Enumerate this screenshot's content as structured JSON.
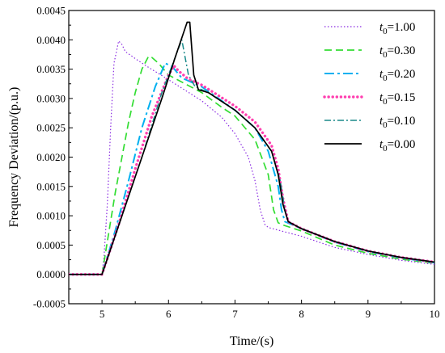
{
  "chart_data": {
    "type": "line",
    "xlabel": "Time/(s)",
    "ylabel": "Frequency Deviation/(p.u.)",
    "xlim": [
      4.5,
      10
    ],
    "ylim": [
      -0.0005,
      0.0045
    ],
    "x_ticks": [
      5,
      6,
      7,
      8,
      9,
      10
    ],
    "x_tick_labels": [
      "5",
      "6",
      "7",
      "8",
      "9",
      "10"
    ],
    "y_ticks": [
      -0.0005,
      0,
      0.0005,
      0.001,
      0.0015,
      0.002,
      0.0025,
      0.003,
      0.0035,
      0.004,
      0.0045
    ],
    "y_tick_labels": [
      "-0.0005",
      "0.0000",
      "0.0005",
      "0.0010",
      "0.0015",
      "0.0020",
      "0.0025",
      "0.0030",
      "0.0035",
      "0.0040",
      "0.0045"
    ],
    "grid": false,
    "legend_position": "top-right",
    "series": [
      {
        "name": "t0=1.00",
        "name_base": "t",
        "name_sub": "0",
        "name_rest": "=1.00",
        "color": "#8a2be2",
        "dash": "1.5,2.5",
        "width": 1.2,
        "points": [
          [
            4.5,
            0
          ],
          [
            5.0,
            0
          ],
          [
            5.03,
            0.0003
          ],
          [
            5.08,
            0.0012
          ],
          [
            5.13,
            0.0025
          ],
          [
            5.18,
            0.0036
          ],
          [
            5.25,
            0.00398
          ],
          [
            5.3,
            0.00392
          ],
          [
            5.35,
            0.0038
          ],
          [
            5.5,
            0.00368
          ],
          [
            5.7,
            0.00353
          ],
          [
            6.0,
            0.00332
          ],
          [
            6.5,
            0.00296
          ],
          [
            6.8,
            0.00268
          ],
          [
            7.0,
            0.0024
          ],
          [
            7.2,
            0.002
          ],
          [
            7.3,
            0.0016
          ],
          [
            7.38,
            0.0011
          ],
          [
            7.45,
            0.00085
          ],
          [
            7.5,
            0.0008
          ],
          [
            8.0,
            0.00065
          ],
          [
            8.5,
            0.00046
          ],
          [
            9.0,
            0.00034
          ],
          [
            9.5,
            0.00024
          ],
          [
            10.0,
            0.00017
          ]
        ]
      },
      {
        "name": "t0=0.30",
        "name_base": "t",
        "name_sub": "0",
        "name_rest": "=0.30",
        "color": "#33dd33",
        "dash": "9,5",
        "width": 1.7,
        "points": [
          [
            4.5,
            0
          ],
          [
            5.0,
            0
          ],
          [
            5.1,
            0.0007
          ],
          [
            5.2,
            0.0014
          ],
          [
            5.3,
            0.002
          ],
          [
            5.4,
            0.0026
          ],
          [
            5.5,
            0.0031
          ],
          [
            5.6,
            0.0035
          ],
          [
            5.7,
            0.00372
          ],
          [
            5.75,
            0.0037
          ],
          [
            5.85,
            0.0036
          ],
          [
            6.0,
            0.0034
          ],
          [
            6.5,
            0.0031
          ],
          [
            6.8,
            0.00285
          ],
          [
            7.0,
            0.0027
          ],
          [
            7.3,
            0.0023
          ],
          [
            7.5,
            0.0017
          ],
          [
            7.58,
            0.0011
          ],
          [
            7.65,
            0.00088
          ],
          [
            7.7,
            0.00085
          ],
          [
            8.0,
            0.00074
          ],
          [
            8.5,
            0.0005
          ],
          [
            9.0,
            0.00036
          ],
          [
            9.5,
            0.00026
          ],
          [
            10.0,
            0.00019
          ]
        ]
      },
      {
        "name": "t0=0.20",
        "name_base": "t",
        "name_sub": "0",
        "name_rest": "=0.20",
        "color": "#00b0f0",
        "dash": "12,4,3,4",
        "width": 2.0,
        "points": [
          [
            4.5,
            0
          ],
          [
            5.0,
            0
          ],
          [
            5.2,
            0.00075
          ],
          [
            5.4,
            0.0016
          ],
          [
            5.6,
            0.0025
          ],
          [
            5.8,
            0.0032
          ],
          [
            5.95,
            0.0036
          ],
          [
            6.05,
            0.00355
          ],
          [
            6.2,
            0.00335
          ],
          [
            6.5,
            0.0032
          ],
          [
            7.0,
            0.0028
          ],
          [
            7.3,
            0.0025
          ],
          [
            7.5,
            0.0021
          ],
          [
            7.65,
            0.0015
          ],
          [
            7.7,
            0.0011
          ],
          [
            7.75,
            0.0009
          ],
          [
            8.0,
            0.00078
          ],
          [
            8.5,
            0.00055
          ],
          [
            9.0,
            0.00039
          ],
          [
            9.5,
            0.00028
          ],
          [
            10.0,
            0.0002
          ]
        ]
      },
      {
        "name": "t0=0.15",
        "name_base": "t",
        "name_sub": "0",
        "name_rest": "=0.15",
        "color": "#ff40b0",
        "dash": "0.1,5",
        "width": 3.4,
        "points": [
          [
            4.5,
            0
          ],
          [
            5.0,
            0
          ],
          [
            5.25,
            0.00085
          ],
          [
            5.5,
            0.0018
          ],
          [
            5.75,
            0.0027
          ],
          [
            6.0,
            0.0034
          ],
          [
            6.08,
            0.00356
          ],
          [
            6.15,
            0.00347
          ],
          [
            6.3,
            0.00333
          ],
          [
            6.5,
            0.00323
          ],
          [
            7.0,
            0.00287
          ],
          [
            7.3,
            0.0026
          ],
          [
            7.55,
            0.0022
          ],
          [
            7.65,
            0.0018
          ],
          [
            7.72,
            0.0013
          ],
          [
            7.8,
            0.0009
          ],
          [
            8.0,
            0.00078
          ],
          [
            8.5,
            0.00056
          ],
          [
            9.0,
            0.0004
          ],
          [
            9.5,
            0.00029
          ],
          [
            10.0,
            0.00021
          ]
        ]
      },
      {
        "name": "t0=0.10",
        "name_base": "t",
        "name_sub": "0",
        "name_rest": "=0.10",
        "color": "#1a8a8a",
        "dash": "8,3,2,3",
        "width": 1.5,
        "points": [
          [
            4.5,
            0
          ],
          [
            5.0,
            0
          ],
          [
            5.3,
            0.001
          ],
          [
            5.6,
            0.002
          ],
          [
            5.9,
            0.0031
          ],
          [
            6.1,
            0.0037
          ],
          [
            6.2,
            0.004
          ],
          [
            6.25,
            0.0037
          ],
          [
            6.3,
            0.0034
          ],
          [
            6.4,
            0.0032
          ],
          [
            6.6,
            0.0031
          ],
          [
            7.0,
            0.0028
          ],
          [
            7.3,
            0.0025
          ],
          [
            7.55,
            0.0021
          ],
          [
            7.68,
            0.0016
          ],
          [
            7.75,
            0.0011
          ],
          [
            7.8,
            0.0009
          ],
          [
            8.0,
            0.00078
          ],
          [
            8.5,
            0.00056
          ],
          [
            9.0,
            0.0004
          ],
          [
            9.5,
            0.00029
          ],
          [
            10.0,
            0.00021
          ]
        ]
      },
      {
        "name": "t0=0.00",
        "name_base": "t",
        "name_sub": "0",
        "name_rest": "=0.00",
        "color": "#000000",
        "dash": "",
        "width": 1.7,
        "points": [
          [
            4.5,
            0
          ],
          [
            5.0,
            0
          ],
          [
            5.3,
            0.001
          ],
          [
            5.6,
            0.002
          ],
          [
            5.9,
            0.003
          ],
          [
            6.1,
            0.0037
          ],
          [
            6.28,
            0.0043
          ],
          [
            6.32,
            0.0043
          ],
          [
            6.38,
            0.0034
          ],
          [
            6.45,
            0.00315
          ],
          [
            6.6,
            0.0031
          ],
          [
            7.0,
            0.0028
          ],
          [
            7.3,
            0.0025
          ],
          [
            7.55,
            0.0021
          ],
          [
            7.65,
            0.0017
          ],
          [
            7.72,
            0.0012
          ],
          [
            7.8,
            0.0009
          ],
          [
            8.0,
            0.00078
          ],
          [
            8.5,
            0.00056
          ],
          [
            9.0,
            0.0004
          ],
          [
            9.5,
            0.00029
          ],
          [
            10.0,
            0.00021
          ]
        ]
      }
    ]
  }
}
